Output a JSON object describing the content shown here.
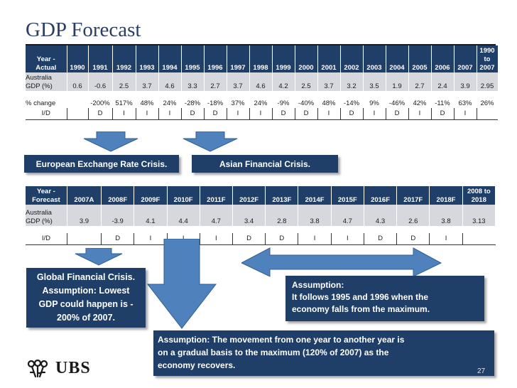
{
  "title": "GDP Forecast",
  "table1": {
    "header_label": [
      "Year -",
      "Actual"
    ],
    "years": [
      "1990",
      "1991",
      "1992",
      "1993",
      "1994",
      "1995",
      "1996",
      "1997",
      "1998",
      "1999",
      "2000",
      "2001",
      "2002",
      "2003",
      "2004",
      "2005",
      "2006",
      "2007"
    ],
    "last_header": [
      "1990",
      "to",
      "2007"
    ],
    "gdp_label": [
      "Australia",
      "GDP (%)"
    ],
    "gdp": [
      "0.6",
      "-0.6",
      "2.5",
      "3.7",
      "4.6",
      "3.3",
      "2.7",
      "3.7",
      "4.6",
      "4.2",
      "2.5",
      "3.7",
      "3.2",
      "3.5",
      "1.9",
      "2.7",
      "2.4",
      "3.9",
      "2.95"
    ],
    "change_label": "% change",
    "change": [
      "",
      "-200%",
      "517%",
      "48%",
      "24%",
      "-28%",
      "-18%",
      "37%",
      "24%",
      "-9%",
      "-40%",
      "48%",
      "-14%",
      "9%",
      "-46%",
      "42%",
      "-11%",
      "63%",
      "26%"
    ],
    "id_label": "I/D",
    "id": [
      "",
      "D",
      "I",
      "I",
      "I",
      "D",
      "D",
      "I",
      "I",
      "D",
      "D",
      "I",
      "D",
      "I",
      "D",
      "I",
      "D",
      "I",
      ""
    ]
  },
  "table2": {
    "header_label": [
      "Year -",
      "Forecast"
    ],
    "years": [
      "2007A",
      "2008F",
      "2009F",
      "2010F",
      "2011F",
      "2012F",
      "2013F",
      "2014F",
      "2015F",
      "2016F",
      "2017F",
      "2018F"
    ],
    "last_header": [
      "2008 to",
      "2018"
    ],
    "gdp_label": [
      "Australia",
      "GDP (%)"
    ],
    "gdp": [
      "3.9",
      "-3.9",
      "4.1",
      "4.4",
      "4.7",
      "3.4",
      "2.8",
      "3.8",
      "4.7",
      "4.3",
      "2.6",
      "3.8",
      "3.13"
    ],
    "id_label": "I/D",
    "id": [
      "",
      "D",
      "I",
      "I",
      "I",
      "D",
      "D",
      "I",
      "I",
      "D",
      "D",
      "I",
      ""
    ]
  },
  "callouts": {
    "european": "European Exchange Rate Crisis.",
    "asian": "Asian Financial Crisis.",
    "gfc": [
      "Global Financial Crisis.",
      "Assumption: Lowest",
      "GDP could happen is -",
      "200% of 2007."
    ],
    "assumption_right": [
      "Assumption:",
      "It follows 1995 and 1996 when the",
      "economy falls from the maximum."
    ],
    "assumption_bottom": [
      "Assumption: The movement from one year to another year is",
      "on a gradual basis to the maximum (120% of 2007) as the",
      "economy recovers."
    ]
  },
  "logo": {
    "text": "UBS",
    "icon": "ubs-keys-icon"
  },
  "page_number": "27",
  "colors": {
    "navy": "#1f3e68",
    "grey_row": "#d6d8dd",
    "arrow_blue": "#4f81bd",
    "title": "#2c3e66"
  }
}
